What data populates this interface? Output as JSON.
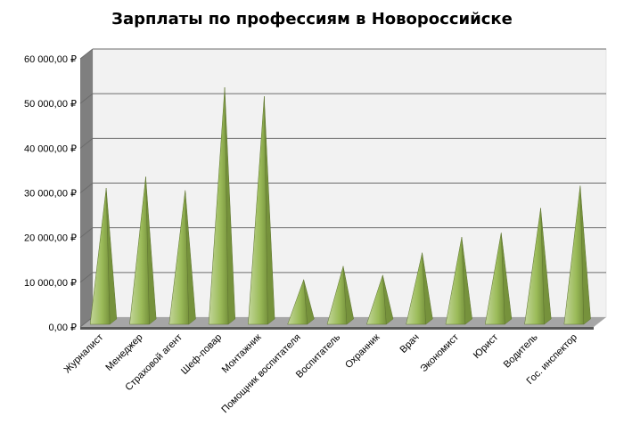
{
  "chart_data": {
    "type": "bar",
    "bar_shape": "pyramid",
    "three_d": true,
    "title": "Зарплаты по профессиям в Новороссийске",
    "xlabel": "",
    "ylabel": "",
    "categories": [
      "Журналист",
      "Менеджер",
      "Страховой агент",
      "Шеф-повар",
      "Монтажник",
      "Помощник воспитателя",
      "Воспитатель",
      "Охранник",
      "Врач",
      "Экономист",
      "Юрист",
      "Водитель",
      "Гос. инспектор"
    ],
    "values": [
      30000,
      32500,
      29500,
      52500,
      50500,
      9500,
      12500,
      10500,
      15500,
      19000,
      20000,
      25500,
      30500
    ],
    "ylim": [
      0,
      60000
    ],
    "yticks": [
      0,
      10000,
      20000,
      30000,
      40000,
      50000,
      60000
    ],
    "ytick_labels": [
      "0,00 ₽",
      "10 000,00 ₽",
      "20 000,00 ₽",
      "30 000,00 ₽",
      "40 000,00 ₽",
      "50 000,00 ₽",
      "60 000,00 ₽"
    ],
    "grid": true,
    "legend": "none",
    "colors": {
      "plot_wall": "#f2f2f2",
      "side_wall": "#7f7f7f",
      "floor": "#a6a6a6",
      "floor_front": "#595959",
      "gridline": "#6b6b6b",
      "bar_front": "#9bbb59",
      "bar_front_light": "#c3d69b",
      "bar_side": "#76923c",
      "bar_edge": "#5f7530"
    }
  }
}
